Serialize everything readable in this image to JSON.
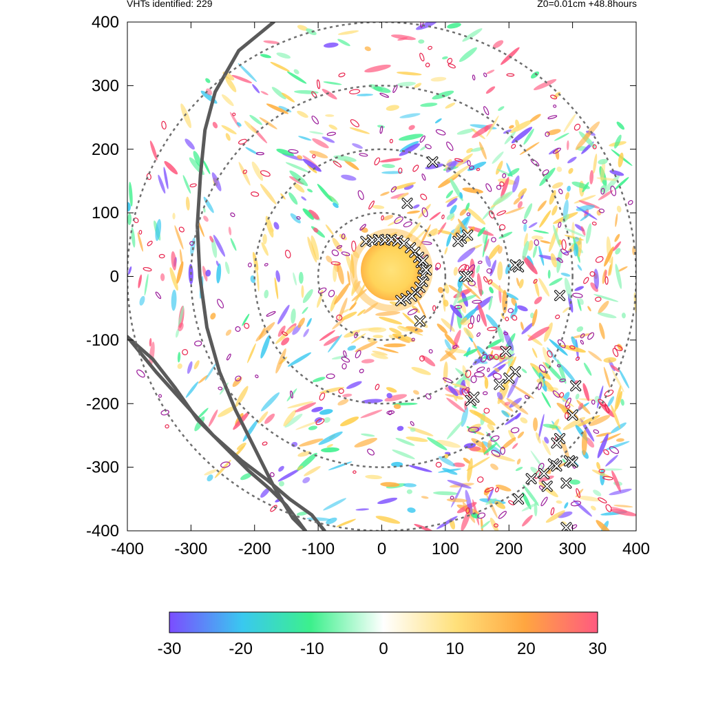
{
  "header": {
    "left": "VHTs identified: 229",
    "right": "Z0=0.01cm  +48.8hours"
  },
  "chart_data": {
    "type": "heatmap",
    "xlim": [
      -400,
      400
    ],
    "ylim": [
      -400,
      400
    ],
    "xticks": [
      "-400",
      "-300",
      "-200",
      "-100",
      "0",
      "100",
      "200",
      "300",
      "400"
    ],
    "yticks": [
      "-400",
      "-300",
      "-200",
      "-100",
      "0",
      "100",
      "200",
      "300",
      "400"
    ],
    "range_rings": [
      100,
      200,
      300,
      400
    ],
    "colorbar": {
      "min": -30,
      "max": 30,
      "ticks": [
        "-30",
        "-20",
        "-10",
        "0",
        "10",
        "20",
        "30"
      ],
      "colors": [
        "#7b4dff",
        "#39c8f0",
        "#3cf08c",
        "#ffffff",
        "#ffe07a",
        "#ffa640",
        "#ff5a80"
      ]
    },
    "coastlines": [
      [
        [
          -170,
          400
        ],
        [
          -225,
          355
        ],
        [
          -262,
          290
        ],
        [
          -278,
          230
        ],
        [
          -285,
          160
        ],
        [
          -290,
          80
        ],
        [
          -286,
          0
        ],
        [
          -275,
          -80
        ],
        [
          -255,
          -150
        ],
        [
          -230,
          -210
        ],
        [
          -200,
          -270
        ],
        [
          -170,
          -330
        ],
        [
          -140,
          -380
        ],
        [
          -120,
          -400
        ]
      ],
      [
        [
          -400,
          -95
        ],
        [
          -360,
          -130
        ],
        [
          -325,
          -175
        ],
        [
          -290,
          -225
        ],
        [
          -250,
          -265
        ],
        [
          -210,
          -305
        ],
        [
          -175,
          -335
        ],
        [
          -150,
          -360
        ],
        [
          -135,
          -380
        ],
        [
          -120,
          -400
        ]
      ],
      [
        [
          -400,
          -95
        ],
        [
          -355,
          -150
        ],
        [
          -310,
          -200
        ],
        [
          -265,
          -250
        ],
        [
          -220,
          -290
        ],
        [
          -180,
          -320
        ],
        [
          -145,
          -350
        ],
        [
          -110,
          -375
        ],
        [
          -90,
          -400
        ]
      ]
    ],
    "vht_points": [
      [
        -25,
        55
      ],
      [
        -15,
        57
      ],
      [
        -5,
        58
      ],
      [
        5,
        57
      ],
      [
        15,
        58
      ],
      [
        25,
        56
      ],
      [
        35,
        52
      ],
      [
        45,
        45
      ],
      [
        52,
        38
      ],
      [
        58,
        30
      ],
      [
        62,
        22
      ],
      [
        65,
        12
      ],
      [
        66,
        2
      ],
      [
        64,
        -8
      ],
      [
        60,
        -17
      ],
      [
        54,
        -25
      ],
      [
        47,
        -31
      ],
      [
        38,
        -35
      ],
      [
        30,
        -38
      ],
      [
        40,
        115
      ],
      [
        80,
        180
      ],
      [
        125,
        60
      ],
      [
        120,
        55
      ],
      [
        135,
        65
      ],
      [
        65,
        25
      ],
      [
        70,
        10
      ],
      [
        130,
        0
      ],
      [
        135,
        0
      ],
      [
        60,
        -70
      ],
      [
        215,
        15
      ],
      [
        210,
        18
      ],
      [
        280,
        -30
      ],
      [
        195,
        -118
      ],
      [
        210,
        -150
      ],
      [
        200,
        -160
      ],
      [
        185,
        -170
      ],
      [
        140,
        -195
      ],
      [
        145,
        -190
      ],
      [
        305,
        -172
      ],
      [
        300,
        -218
      ],
      [
        280,
        -255
      ],
      [
        275,
        -262
      ],
      [
        295,
        -290
      ],
      [
        300,
        -292
      ],
      [
        270,
        -295
      ],
      [
        275,
        -298
      ],
      [
        235,
        -318
      ],
      [
        255,
        -310
      ],
      [
        260,
        -330
      ],
      [
        290,
        -325
      ],
      [
        215,
        -350
      ],
      [
        290,
        -395
      ]
    ],
    "cx": 0,
    "cy": 0
  }
}
